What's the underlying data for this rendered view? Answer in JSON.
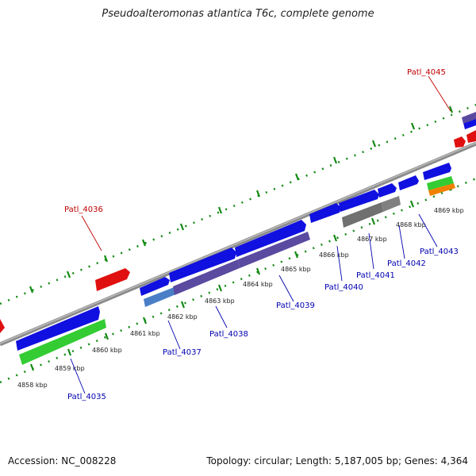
{
  "title": "Pseudoalteromonas atlantica T6c, complete genome",
  "footer": {
    "accession": "Accession: NC_008228",
    "summary": "Topology: circular; Length: 5,187,005 bp; Genes: 4,364"
  },
  "ticks": [
    "4858 kbp",
    "4859 kbp",
    "4860 kbp",
    "4861 kbp",
    "4862 kbp",
    "4863 kbp",
    "4864 kbp",
    "4865 kbp",
    "4866 kbp",
    "4867 kbp",
    "4868 kbp",
    "4869 kbp"
  ],
  "labels": {
    "patl_4035": "Patl_4035",
    "patl_4036": "Patl_4036",
    "patl_4037": "Patl_4037",
    "patl_4038": "Patl_4038",
    "patl_4039": "Patl_4039",
    "patl_4040": "Patl_4040",
    "patl_4041": "Patl_4041",
    "patl_4042": "Patl_4042",
    "patl_4043": "Patl_4043",
    "patl_4045": "Patl_4045"
  },
  "colors": {
    "forward_cds": "#1010e0",
    "reverse_cds": "#e01010",
    "rna": "#33cc33",
    "slate": "#5a4aa0",
    "gray": "#777777",
    "orange": "#f08000",
    "label_blue": "#0000b0",
    "label_red": "#c00000",
    "tick_green": "#138a13"
  }
}
